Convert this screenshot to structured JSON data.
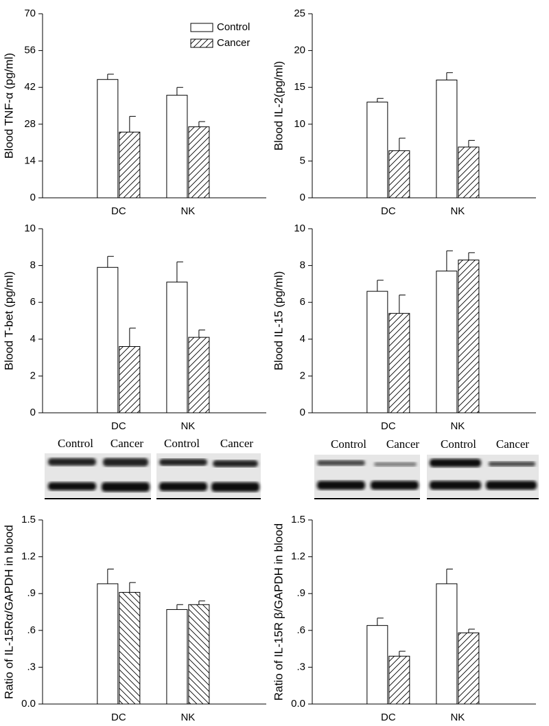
{
  "chart_data": [
    {
      "type": "bar",
      "ylabel": "Blood TNF-α (pg/ml)",
      "categories": [
        "DC",
        "NK"
      ],
      "ylim": [
        0,
        70
      ],
      "yticks": [
        0,
        14,
        28,
        42,
        56,
        70
      ],
      "legend": "upper right",
      "series": [
        {
          "name": "Control",
          "color": "#ffffff",
          "values": [
            45,
            39
          ],
          "errors": [
            2,
            3
          ]
        },
        {
          "name": "Cancer",
          "color": "#ffffff",
          "hatch": "/",
          "values": [
            25,
            27
          ],
          "errors": [
            6,
            2
          ]
        }
      ]
    },
    {
      "type": "bar",
      "ylabel": "Blood IL-2(pg/ml)",
      "categories": [
        "DC",
        "NK"
      ],
      "ylim": [
        0,
        25
      ],
      "yticks": [
        0,
        5,
        10,
        15,
        20,
        25
      ],
      "series": [
        {
          "color": "#ffffff",
          "values": [
            13,
            16
          ],
          "errors": [
            0.5,
            1
          ]
        },
        {
          "color": "#ffffff",
          "hatch": "/",
          "values": [
            6.4,
            6.9
          ],
          "errors": [
            1.7,
            0.9
          ]
        }
      ]
    },
    {
      "type": "bar",
      "ylabel": "Blood T-bet (pg/ml)",
      "categories": [
        "DC",
        "NK"
      ],
      "ylim": [
        0,
        10
      ],
      "yticks": [
        0,
        2,
        4,
        6,
        8,
        10
      ],
      "series": [
        {
          "color": "#ffffff",
          "values": [
            7.9,
            7.1
          ],
          "errors": [
            0.6,
            1.1
          ]
        },
        {
          "color": "#ffffff",
          "hatch": "/",
          "values": [
            3.6,
            4.1
          ],
          "errors": [
            1.0,
            0.4
          ]
        }
      ]
    },
    {
      "type": "bar",
      "ylabel": "Blood IL-15 (pg/ml)",
      "categories": [
        "DC",
        "NK"
      ],
      "ylim": [
        0,
        10
      ],
      "yticks": [
        0,
        2,
        4,
        6,
        8,
        10
      ],
      "series": [
        {
          "color": "#ffffff",
          "values": [
            6.6,
            7.7
          ],
          "errors": [
            0.6,
            1.1
          ]
        },
        {
          "color": "#ffffff",
          "hatch": "/",
          "values": [
            5.4,
            8.3
          ],
          "errors": [
            1.0,
            0.4
          ]
        }
      ]
    },
    {
      "type": "bar",
      "ylabel": "Ratio of IL-15Rα/GAPDH in blood",
      "categories": [
        "DC",
        "NK"
      ],
      "ylim": [
        0,
        1.5
      ],
      "yticks": [
        {
          "value": 0,
          "label": "0.0"
        },
        {
          "value": 0.3,
          "label": ".3"
        },
        {
          "value": 0.6,
          "label": ".6"
        },
        {
          "value": 0.9,
          "label": ".9"
        },
        {
          "value": 1.2,
          "label": "1.2"
        },
        1.5
      ],
      "series": [
        {
          "color": "#ffffff",
          "values": [
            0.98,
            0.77
          ],
          "errors": [
            0.12,
            0.04
          ]
        },
        {
          "color": "#ffffff",
          "hatch": "\\",
          "values": [
            0.91,
            0.81
          ],
          "errors": [
            0.08,
            0.03
          ]
        }
      ]
    },
    {
      "type": "bar",
      "ylabel": "Ratio of IL-15R β/GAPDH in blood",
      "categories": [
        "DC",
        "NK"
      ],
      "ylim": [
        0,
        1.5
      ],
      "yticks": [
        {
          "value": 0,
          "label": "0.0"
        },
        {
          "value": 0.3,
          "label": ".3"
        },
        {
          "value": 0.6,
          "label": ".6"
        },
        {
          "value": 0.9,
          "label": ".9"
        },
        {
          "value": 1.2,
          "label": "1.2"
        },
        1.5
      ],
      "series": [
        {
          "color": "#ffffff",
          "values": [
            0.64,
            0.98
          ],
          "errors": [
            0.06,
            0.12
          ]
        },
        {
          "color": "#ffffff",
          "hatch": "/",
          "values": [
            0.39,
            0.58
          ],
          "errors": [
            0.04,
            0.03
          ]
        }
      ]
    }
  ],
  "blots": [
    {
      "labels": [
        "Control",
        "Cancer",
        "Control",
        "Cancer"
      ]
    },
    {
      "labels": [
        "Control",
        "Cancer",
        "Control",
        "Cancer"
      ]
    }
  ]
}
